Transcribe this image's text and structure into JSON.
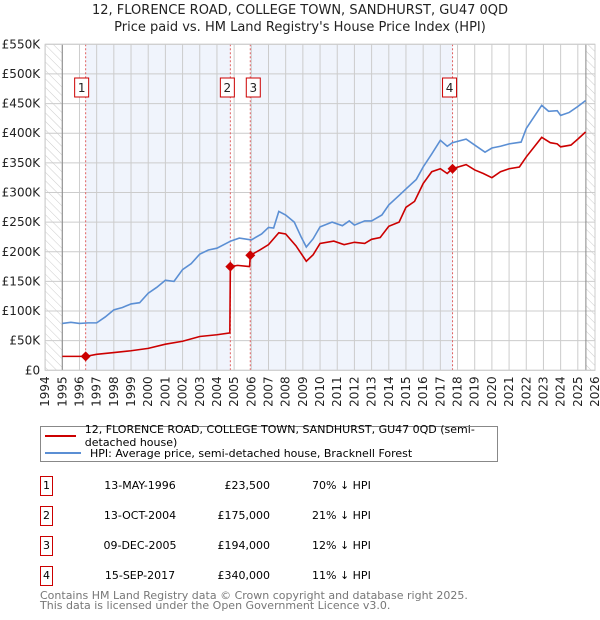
{
  "chart_data": {
    "type": "line",
    "title": "12, FLORENCE ROAD, COLLEGE TOWN, SANDHURST, GU47 0QD",
    "subtitle": "Price paid vs. HM Land Registry's House Price Index (HPI)",
    "xlim": [
      1994,
      2026
    ],
    "ylim": [
      0,
      550000
    ],
    "x_ticks": [
      "1994",
      "1995",
      "1996",
      "1997",
      "1998",
      "1999",
      "2000",
      "2001",
      "2002",
      "2003",
      "2004",
      "2005",
      "2006",
      "2007",
      "2008",
      "2009",
      "2010",
      "2011",
      "2012",
      "2013",
      "2014",
      "2015",
      "2016",
      "2017",
      "2018",
      "2019",
      "2020",
      "2021",
      "2022",
      "2023",
      "2024",
      "2025",
      "2026"
    ],
    "y_ticks": [
      {
        "v": 0,
        "label": "£0"
      },
      {
        "v": 50000,
        "label": "£50K"
      },
      {
        "v": 100000,
        "label": "£100K"
      },
      {
        "v": 150000,
        "label": "£150K"
      },
      {
        "v": 200000,
        "label": "£200K"
      },
      {
        "v": 250000,
        "label": "£250K"
      },
      {
        "v": 300000,
        "label": "£300K"
      },
      {
        "v": 350000,
        "label": "£350K"
      },
      {
        "v": 400000,
        "label": "£400K"
      },
      {
        "v": 450000,
        "label": "£450K"
      },
      {
        "v": 500000,
        "label": "£500K"
      },
      {
        "v": 550000,
        "label": "£550K"
      }
    ],
    "data_range": [
      1995,
      2025.47
    ],
    "series": [
      {
        "name": "12, FLORENCE ROAD, COLLEGE TOWN, SANDHURST, GU47 0QD (semi-detached house)",
        "color": "#cc0000",
        "points": [
          [
            1995,
            23500
          ],
          [
            1996.37,
            23500
          ],
          [
            1997,
            27000
          ],
          [
            1998,
            30000
          ],
          [
            1999,
            33000
          ],
          [
            2000,
            37000
          ],
          [
            2001,
            44000
          ],
          [
            2002,
            49000
          ],
          [
            2003,
            57000
          ],
          [
            2004,
            60000
          ],
          [
            2004.75,
            63000
          ],
          [
            2004.78,
            175000
          ],
          [
            2005.2,
            177000
          ],
          [
            2005.9,
            175000
          ],
          [
            2005.94,
            194000
          ],
          [
            2006.5,
            203000
          ],
          [
            2007,
            212000
          ],
          [
            2007.6,
            232000
          ],
          [
            2008,
            230000
          ],
          [
            2008.6,
            210000
          ],
          [
            2009.2,
            184000
          ],
          [
            2009.6,
            195000
          ],
          [
            2010,
            214000
          ],
          [
            2010.8,
            218000
          ],
          [
            2011.4,
            212000
          ],
          [
            2012,
            216000
          ],
          [
            2012.6,
            214000
          ],
          [
            2013,
            221000
          ],
          [
            2013.5,
            224000
          ],
          [
            2014,
            243000
          ],
          [
            2014.6,
            250000
          ],
          [
            2015,
            275000
          ],
          [
            2015.5,
            285000
          ],
          [
            2016,
            315000
          ],
          [
            2016.5,
            335000
          ],
          [
            2017,
            340000
          ],
          [
            2017.4,
            332000
          ],
          [
            2017.7,
            340000
          ],
          [
            2018.5,
            347000
          ],
          [
            2019,
            338000
          ],
          [
            2019.5,
            332000
          ],
          [
            2020,
            325000
          ],
          [
            2020.5,
            335000
          ],
          [
            2021,
            340000
          ],
          [
            2021.6,
            343000
          ],
          [
            2022,
            360000
          ],
          [
            2022.9,
            393000
          ],
          [
            2023.4,
            384000
          ],
          [
            2023.8,
            382000
          ],
          [
            2024,
            377000
          ],
          [
            2024.6,
            380000
          ],
          [
            2025,
            390000
          ],
          [
            2025.45,
            402000
          ]
        ]
      },
      {
        "name": "HPI: Average price, semi-detached house, Bracknell Forest",
        "color": "#5b8fd4",
        "points": [
          [
            1995,
            79000
          ],
          [
            1995.5,
            81000
          ],
          [
            1996,
            79000
          ],
          [
            1996.5,
            80000
          ],
          [
            1997,
            80000
          ],
          [
            1997.5,
            90000
          ],
          [
            1998,
            102000
          ],
          [
            1998.5,
            106000
          ],
          [
            1999,
            112000
          ],
          [
            1999.5,
            114000
          ],
          [
            2000,
            130000
          ],
          [
            2000.5,
            140000
          ],
          [
            2001,
            152000
          ],
          [
            2001.5,
            150000
          ],
          [
            2002,
            170000
          ],
          [
            2002.5,
            180000
          ],
          [
            2003,
            196000
          ],
          [
            2003.5,
            203000
          ],
          [
            2004,
            206000
          ],
          [
            2004.8,
            218000
          ],
          [
            2005.3,
            223000
          ],
          [
            2006,
            220000
          ],
          [
            2006.6,
            230000
          ],
          [
            2007,
            241000
          ],
          [
            2007.3,
            240000
          ],
          [
            2007.6,
            268000
          ],
          [
            2008,
            262000
          ],
          [
            2008.5,
            250000
          ],
          [
            2008.9,
            225000
          ],
          [
            2009.2,
            208000
          ],
          [
            2009.6,
            222000
          ],
          [
            2010,
            242000
          ],
          [
            2010.7,
            250000
          ],
          [
            2011.3,
            244000
          ],
          [
            2011.7,
            252000
          ],
          [
            2012,
            245000
          ],
          [
            2012.6,
            252000
          ],
          [
            2013,
            252000
          ],
          [
            2013.6,
            262000
          ],
          [
            2014,
            279000
          ],
          [
            2014.6,
            295000
          ],
          [
            2015,
            306000
          ],
          [
            2015.6,
            322000
          ],
          [
            2016,
            343000
          ],
          [
            2016.5,
            365000
          ],
          [
            2017,
            388000
          ],
          [
            2017.4,
            378000
          ],
          [
            2017.7,
            384000
          ],
          [
            2018.5,
            390000
          ],
          [
            2019,
            380000
          ],
          [
            2019.6,
            368000
          ],
          [
            2020,
            375000
          ],
          [
            2020.5,
            378000
          ],
          [
            2021,
            382000
          ],
          [
            2021.7,
            385000
          ],
          [
            2022,
            408000
          ],
          [
            2022.9,
            447000
          ],
          [
            2023.3,
            437000
          ],
          [
            2023.8,
            438000
          ],
          [
            2024,
            430000
          ],
          [
            2024.5,
            435000
          ],
          [
            2025,
            445000
          ],
          [
            2025.45,
            455000
          ]
        ]
      }
    ],
    "sales": [
      {
        "id": "1",
        "x": 1996.36,
        "y": 23500
      },
      {
        "id": "2",
        "x": 2004.78,
        "y": 175000
      },
      {
        "id": "3",
        "x": 2005.94,
        "y": 194000
      },
      {
        "id": "4",
        "x": 2017.71,
        "y": 340000
      }
    ]
  },
  "header": {
    "title": "12, FLORENCE ROAD, COLLEGE TOWN, SANDHURST, GU47 0QD",
    "subtitle": "Price paid vs. HM Land Registry's House Price Index (HPI)"
  },
  "legend": {
    "property": "12, FLORENCE ROAD, COLLEGE TOWN, SANDHURST, GU47 0QD (semi-detached house)",
    "hpi": "HPI: Average price, semi-detached house, Bracknell Forest"
  },
  "sales_table": [
    {
      "num": "1",
      "date": "13-MAY-1996",
      "price": "£23,500",
      "pct": "70% ↓ HPI"
    },
    {
      "num": "2",
      "date": "13-OCT-2004",
      "price": "£175,000",
      "pct": "21% ↓ HPI"
    },
    {
      "num": "3",
      "date": "09-DEC-2005",
      "price": "£194,000",
      "pct": "12% ↓ HPI"
    },
    {
      "num": "4",
      "date": "15-SEP-2017",
      "price": "£340,000",
      "pct": "11% ↓ HPI"
    }
  ],
  "footer": {
    "line1": "Contains HM Land Registry data © Crown copyright and database right 2025.",
    "line2": "This data is licensed under the Open Government Licence v3.0."
  }
}
